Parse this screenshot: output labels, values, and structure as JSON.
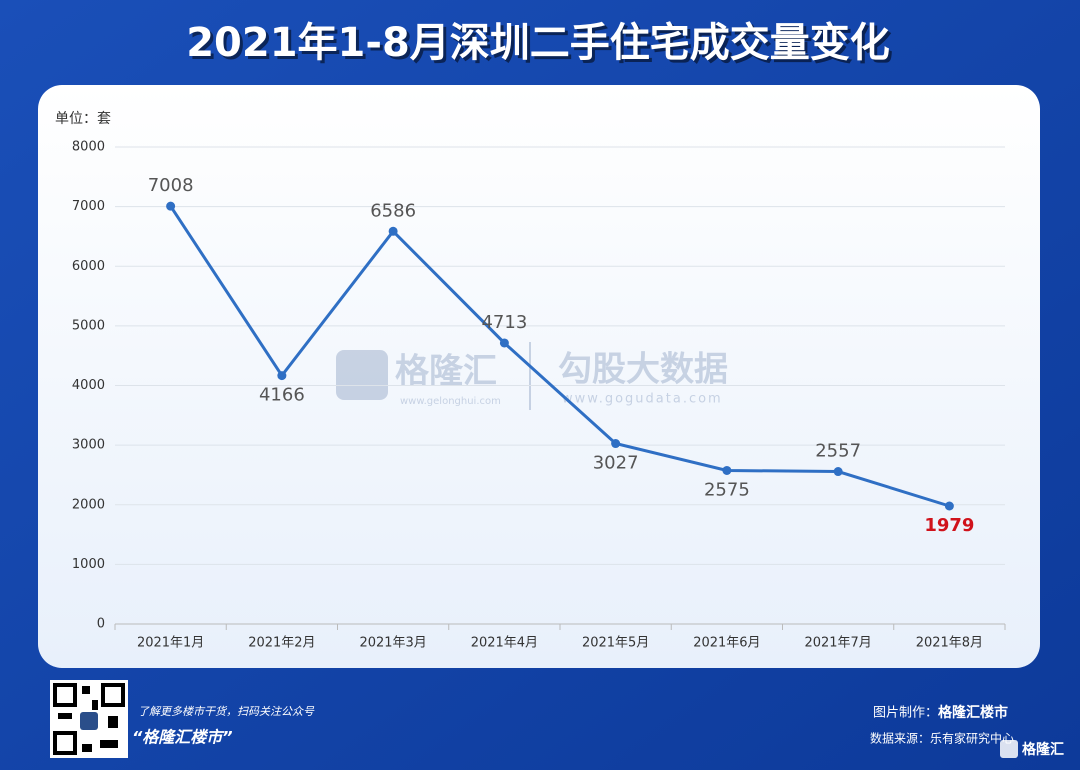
{
  "chart_data": {
    "type": "line",
    "title": "2021年1-8月深圳二手住宅成交量变化",
    "y_unit": "单位：套",
    "categories": [
      "2021年1月",
      "2021年2月",
      "2021年3月",
      "2021年4月",
      "2021年5月",
      "2021年6月",
      "2021年7月",
      "2021年8月"
    ],
    "values": [
      7008,
      4166,
      6586,
      4713,
      3027,
      2575,
      2557,
      1979
    ],
    "color": "#2f6fc4",
    "ylim": [
      0,
      8000
    ],
    "yticks": [
      0,
      1000,
      2000,
      3000,
      4000,
      5000,
      6000,
      7000,
      8000
    ],
    "grid": true
  },
  "watermark": {
    "brand": "格隆汇",
    "brand_url": "www.gelonghui.com",
    "partner": "勾股大数据",
    "partner_url": "www.gogudata.com"
  },
  "footer": {
    "promo": "了解更多楼市干货，扫码关注公众号",
    "account": "“格隆汇楼市”",
    "made_by_label": "图片制作：",
    "made_by": "格隆汇楼市",
    "source_label": "数据来源：",
    "source": "乐有家研究中心",
    "logo": "格隆汇"
  }
}
